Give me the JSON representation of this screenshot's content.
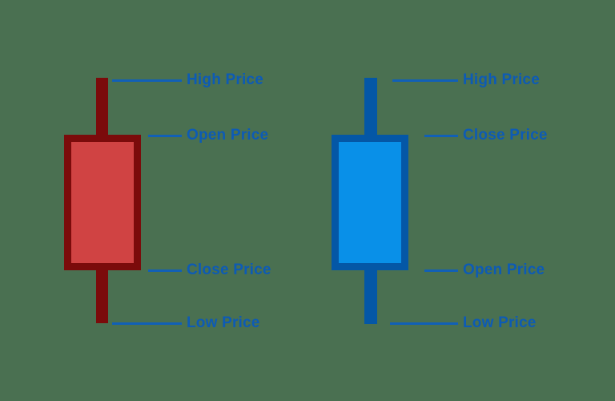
{
  "diagram": {
    "type": "candlestick-anatomy",
    "colors": {
      "background": "#4A7051",
      "label_text": "#0D5BB5",
      "connector_line": "#1160B6",
      "bearish_border": "#7B0B0B",
      "bearish_fill": "#D04343",
      "bullish_border": "#0457A6",
      "bullish_fill": "#0990E8"
    },
    "candles": [
      {
        "type": "bearish",
        "color_name": "red",
        "annotations": [
          {
            "position": "wick-top",
            "label": "High Price"
          },
          {
            "position": "body-top",
            "label": "Open Price"
          },
          {
            "position": "body-bottom",
            "label": "Close Price"
          },
          {
            "position": "wick-bottom",
            "label": "Low Price"
          }
        ]
      },
      {
        "type": "bullish",
        "color_name": "blue",
        "annotations": [
          {
            "position": "wick-top",
            "label": "High Price"
          },
          {
            "position": "body-top",
            "label": "Close Price"
          },
          {
            "position": "body-bottom",
            "label": "Open Price"
          },
          {
            "position": "wick-bottom",
            "label": "Low Price"
          }
        ]
      }
    ]
  }
}
